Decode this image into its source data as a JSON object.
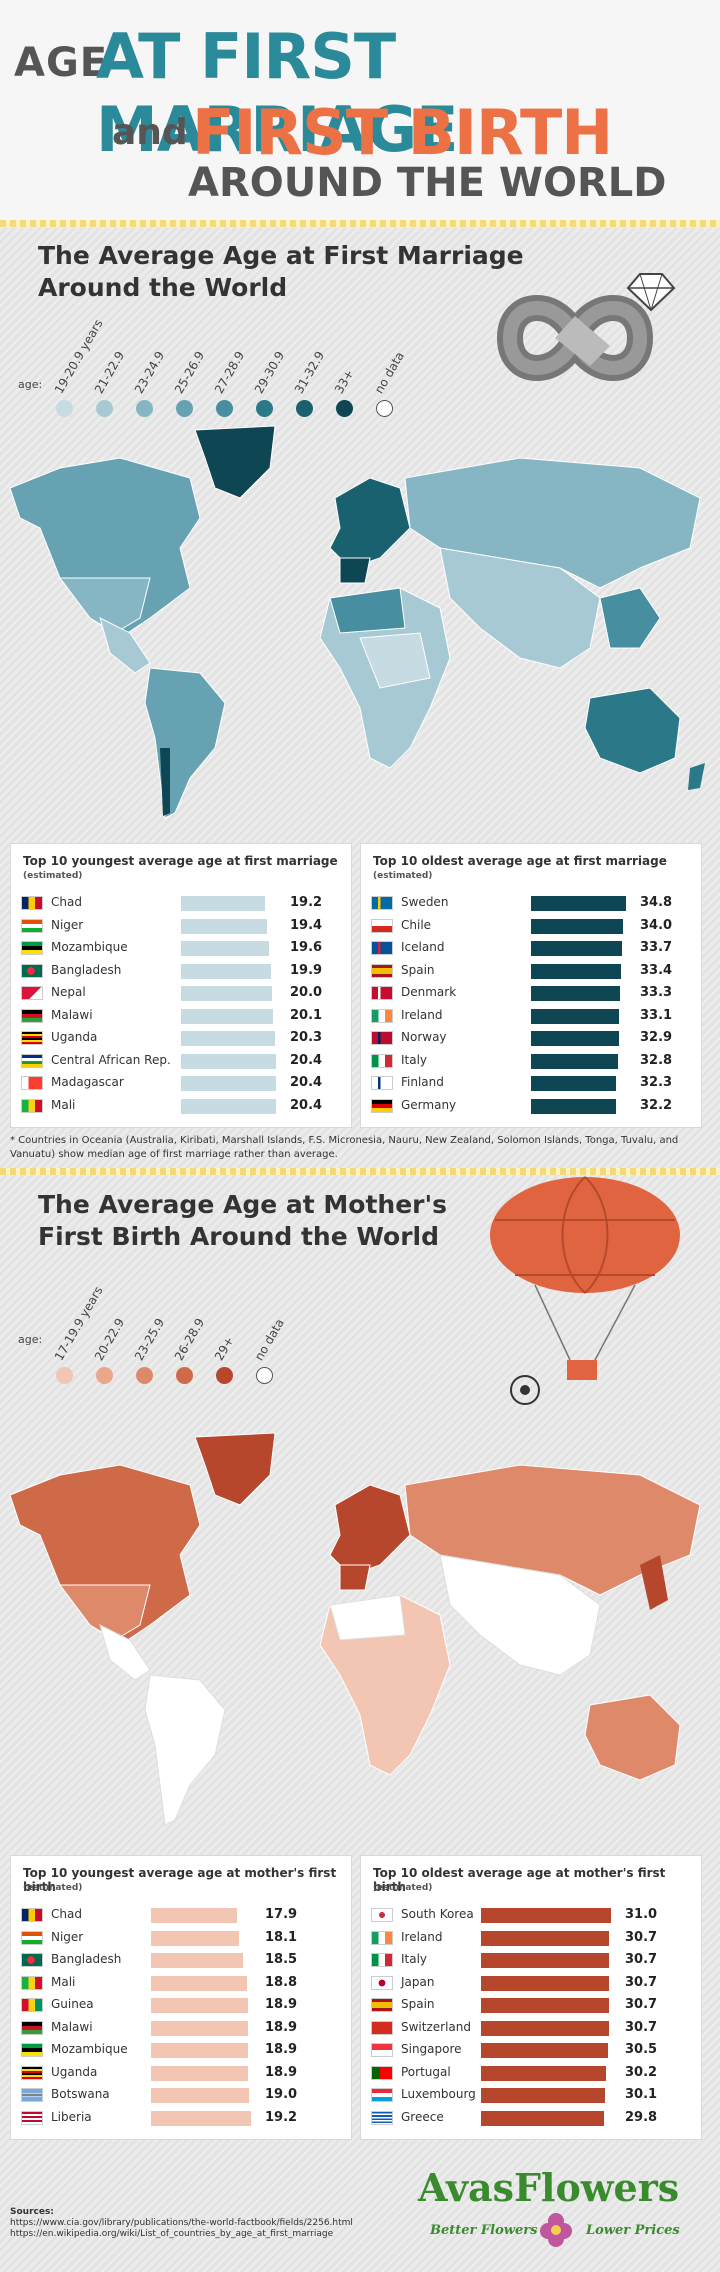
{
  "header": {
    "age": "AGE",
    "at_first_marriage": "AT FIRST MARRIAGE",
    "and": "and",
    "first_birth": "FIRST BIRTH",
    "around": "AROUND THE WORLD"
  },
  "marriage": {
    "title_line1": "The Average Age at First Marriage",
    "title_line2": "Around the World",
    "legend_prefix": "age:",
    "legend": [
      {
        "label": "19-20.9 years",
        "color": "#c7dbe2"
      },
      {
        "label": "21-22.9",
        "color": "#a7c9d3"
      },
      {
        "label": "23-24.9",
        "color": "#86b6c3"
      },
      {
        "label": "25-26.9",
        "color": "#66a2b2"
      },
      {
        "label": "27-28.9",
        "color": "#468ea0"
      },
      {
        "label": "29-30.9",
        "color": "#2b7889"
      },
      {
        "label": "31-32.9",
        "color": "#1a6170"
      },
      {
        "label": "33+",
        "color": "#0e4654"
      },
      {
        "label": "no data",
        "color": "#ffffff"
      }
    ],
    "youngest": {
      "title": "Top 10 youngest average age at first marriage",
      "sub": "(estimated)",
      "rows": [
        {
          "country": "Chad",
          "value": "19.2"
        },
        {
          "country": "Niger",
          "value": "19.4"
        },
        {
          "country": "Mozambique",
          "value": "19.6"
        },
        {
          "country": "Bangladesh",
          "value": "19.9"
        },
        {
          "country": "Nepal",
          "value": "20.0"
        },
        {
          "country": "Malawi",
          "value": "20.1"
        },
        {
          "country": "Uganda",
          "value": "20.3"
        },
        {
          "country": "Central African Rep.",
          "value": "20.4"
        },
        {
          "country": "Madagascar",
          "value": "20.4"
        },
        {
          "country": "Mali",
          "value": "20.4"
        }
      ]
    },
    "oldest": {
      "title": "Top 10 oldest average age at first marriage",
      "sub": "(estimated)",
      "rows": [
        {
          "country": "Sweden",
          "value": "34.8"
        },
        {
          "country": "Chile",
          "value": "34.0"
        },
        {
          "country": "Iceland",
          "value": "33.7"
        },
        {
          "country": "Spain",
          "value": "33.4"
        },
        {
          "country": "Denmark",
          "value": "33.3"
        },
        {
          "country": "Ireland",
          "value": "33.1"
        },
        {
          "country": "Norway",
          "value": "32.9"
        },
        {
          "country": "Italy",
          "value": "32.8"
        },
        {
          "country": "Finland",
          "value": "32.3"
        },
        {
          "country": "Germany",
          "value": "32.2"
        }
      ]
    },
    "note": "* Countries in Oceania (Australia, Kiribati, Marshall Islands, F.S. Micronesia, Nauru, New Zealand, Solomon Islands, Tonga, Tuvalu, and Vanuatu) show median age of first marriage rather than average."
  },
  "birth": {
    "title_line1": "The Average Age at Mother's",
    "title_line2": "First Birth Around the World",
    "legend_prefix": "age:",
    "legend": [
      {
        "label": "17-19.9 years",
        "color": "#f3c6b3"
      },
      {
        "label": "20-22.9",
        "color": "#e9a78c"
      },
      {
        "label": "23-25.9",
        "color": "#de8a6a"
      },
      {
        "label": "26-28.9",
        "color": "#cf6a49"
      },
      {
        "label": "29+",
        "color": "#b6472c"
      },
      {
        "label": "no data",
        "color": "#ffffff"
      }
    ],
    "youngest": {
      "title": "Top 10 youngest average age at mother's first birth",
      "sub": "(estimated)",
      "rows": [
        {
          "country": "Chad",
          "value": "17.9"
        },
        {
          "country": "Niger",
          "value": "18.1"
        },
        {
          "country": "Bangladesh",
          "value": "18.5"
        },
        {
          "country": "Mali",
          "value": "18.8"
        },
        {
          "country": "Guinea",
          "value": "18.9"
        },
        {
          "country": "Malawi",
          "value": "18.9"
        },
        {
          "country": "Mozambique",
          "value": "18.9"
        },
        {
          "country": "Uganda",
          "value": "18.9"
        },
        {
          "country": "Botswana",
          "value": "19.0"
        },
        {
          "country": "Liberia",
          "value": "19.2"
        }
      ]
    },
    "oldest": {
      "title": "Top 10 oldest average age at mother's first birth",
      "sub": "(estimated)",
      "rows": [
        {
          "country": "South Korea",
          "value": "31.0"
        },
        {
          "country": "Ireland",
          "value": "30.7"
        },
        {
          "country": "Italy",
          "value": "30.7"
        },
        {
          "country": "Japan",
          "value": "30.7"
        },
        {
          "country": "Spain",
          "value": "30.7"
        },
        {
          "country": "Switzerland",
          "value": "30.7"
        },
        {
          "country": "Singapore",
          "value": "30.5"
        },
        {
          "country": "Portugal",
          "value": "30.2"
        },
        {
          "country": "Luxembourg",
          "value": "30.1"
        },
        {
          "country": "Greece",
          "value": "29.8"
        }
      ]
    }
  },
  "sources": {
    "label": "Sources:",
    "lines": [
      "https://www.cia.gov/library/publications/the-world-factbook/fields/2256.html",
      "https://en.wikipedia.org/wiki/List_of_countries_by_age_at_first_marriage"
    ]
  },
  "brand": {
    "name": "AvasFlowers",
    "tag_left": "Better Flowers",
    "tag_right": "Lower Prices"
  }
}
